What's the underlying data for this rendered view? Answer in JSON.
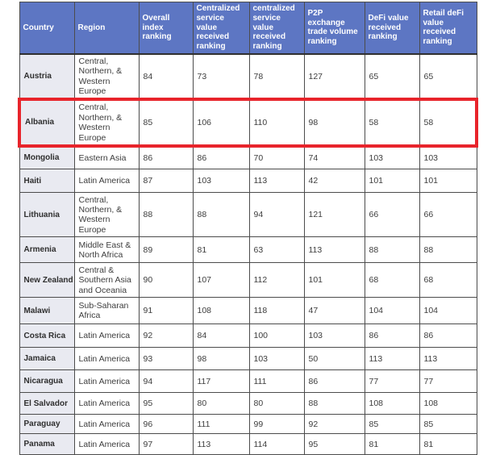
{
  "colors": {
    "header_bg": "#5d76c3",
    "header_text": "#ffffff",
    "country_column_bg": "#e9eaf1",
    "grid_border": "#4c4c4c",
    "highlight_border": "#e8242b",
    "body_text": "#3d3d3d"
  },
  "chart_data": {
    "type": "table",
    "title": "",
    "columns": [
      "Country",
      "Region",
      "Overall index ranking",
      "Centralized service value received ranking",
      "centralized service value received ranking",
      "P2P exchange trade volume ranking",
      "DeFi value received ranking",
      "Retail deFi value received ranking"
    ],
    "rows": [
      [
        "Austria",
        "Central, Northern, & Western Europe",
        84,
        73,
        78,
        127,
        65,
        65
      ],
      [
        "Albania",
        "Central, Northern, & Western Europe",
        85,
        106,
        110,
        98,
        58,
        58
      ],
      [
        "Mongolia",
        "Eastern Asia",
        86,
        86,
        70,
        74,
        103,
        103
      ],
      [
        "Haiti",
        "Latin America",
        87,
        103,
        113,
        42,
        101,
        101
      ],
      [
        "Lithuania",
        "Central, Northern, & Western Europe",
        88,
        88,
        94,
        121,
        66,
        66
      ],
      [
        "Armenia",
        "Middle East & North Africa",
        89,
        81,
        63,
        113,
        88,
        88
      ],
      [
        "New Zealand",
        "Central & Southern Asia and Oceania",
        90,
        107,
        112,
        101,
        68,
        68
      ],
      [
        "Malawi",
        "Sub-Saharan Africa",
        91,
        108,
        118,
        47,
        104,
        104
      ],
      [
        "Costa Rica",
        "Latin America",
        92,
        84,
        100,
        103,
        86,
        86
      ],
      [
        "Jamaica",
        "Latin America",
        93,
        98,
        103,
        50,
        113,
        113
      ],
      [
        "Nicaragua",
        "Latin America",
        94,
        117,
        111,
        86,
        77,
        77
      ],
      [
        "El Salvador",
        "Latin America",
        95,
        80,
        80,
        88,
        108,
        108
      ],
      [
        "Paraguay",
        "Latin America",
        96,
        111,
        99,
        92,
        85,
        85
      ],
      [
        "Panama",
        "Latin America",
        97,
        113,
        114,
        95,
        81,
        81
      ]
    ],
    "highlighted_row_index": 1,
    "highlighted_row_country": "Albania",
    "legend_position": "none",
    "grid": true
  }
}
